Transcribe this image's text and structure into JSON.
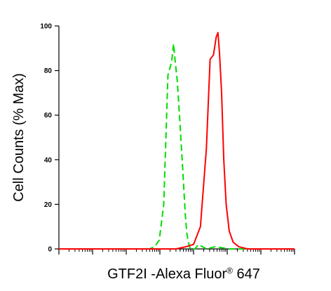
{
  "chart_data": {
    "type": "line",
    "title": "",
    "xlabel": {
      "main": "GTF2I -Alexa Fluor",
      "superscript": "®",
      "suffix": " 647"
    },
    "ylabel": "Cell Counts (% Max)",
    "xscale": "log",
    "xlim": [
      1,
      10000000
    ],
    "ylim": [
      0,
      100
    ],
    "y_ticks": [
      {
        "value": 0,
        "label": "0"
      },
      {
        "value": 20,
        "label": "20"
      },
      {
        "value": 40,
        "label": "40"
      },
      {
        "value": 60,
        "label": "60"
      },
      {
        "value": 80,
        "label": "80"
      },
      {
        "value": 100,
        "label": "100"
      }
    ],
    "x_tick_labels_shown": false,
    "grid": false,
    "legend": "none",
    "series": [
      {
        "color": "#00dd00",
        "line_style": "dashed",
        "x": [
          1,
          200,
          480,
          700,
          960,
          1300,
          1740,
          2240,
          2550,
          2900,
          3300,
          4000,
          4800,
          5700,
          6300,
          7000,
          8000,
          9500,
          11000,
          14000,
          24000,
          44000,
          120000,
          700000,
          10000000
        ],
        "y": [
          0,
          0,
          0,
          1,
          4,
          20,
          78,
          84,
          92,
          83,
          75,
          55,
          35,
          15,
          7,
          3,
          0,
          0,
          0,
          2,
          0,
          1,
          0,
          0,
          0
        ]
      },
      {
        "color": "#ff0000",
        "line_style": "solid",
        "x": [
          1,
          3000,
          6000,
          10000,
          16000,
          24000,
          31000,
          39000,
          47000,
          53000,
          59000,
          68000,
          79000,
          93000,
          115000,
          150000,
          220000,
          400000,
          1000000,
          10000000
        ],
        "y": [
          0,
          0,
          1,
          2,
          10,
          45,
          85,
          87,
          95,
          97,
          88,
          70,
          40,
          20,
          8,
          3,
          1,
          0,
          0,
          0
        ]
      }
    ]
  }
}
